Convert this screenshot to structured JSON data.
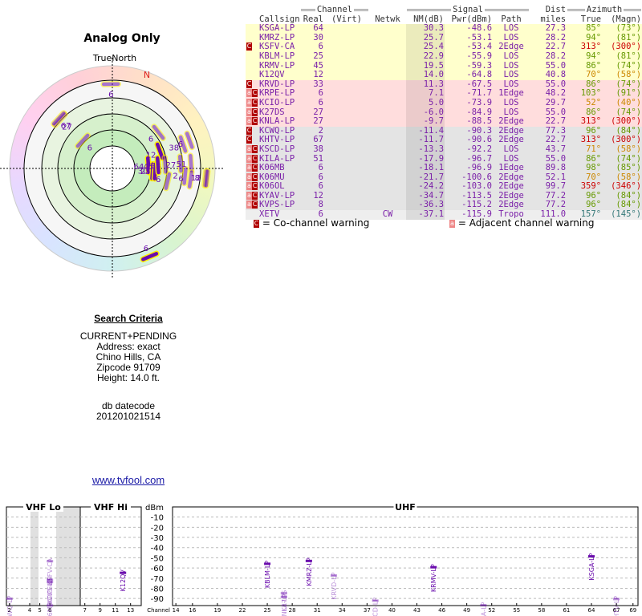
{
  "polar": {
    "title": "Analog Only",
    "north_label": "TrueNorth",
    "n_mark": "N"
  },
  "search": {
    "title": "Search Criteria",
    "lines": [
      "CURRENT+PENDING",
      "Address: exact",
      "Chino Hills, CA",
      "Zipcode 91709",
      "Height: 14.0 ft."
    ],
    "datecode_label": "db datecode",
    "datecode": "201201021514"
  },
  "link": "www.tvfool.com",
  "table": {
    "groups": {
      "channel": "Channel",
      "signal": "Signal",
      "dist": "Dist",
      "azimuth": "Azimuth"
    },
    "columns": {
      "callsign": "Callsign",
      "real": "Real",
      "virt": "(Virt)",
      "netwk": "Netwk",
      "nm": "NM(dB)",
      "pwr": "Pwr(dBm)",
      "path": "Path",
      "dist": "miles",
      "true": "True",
      "magn": "(Magn)"
    },
    "rows": [
      {
        "flags": [],
        "callsign": "KSGA-LP",
        "real": "64",
        "virt": "",
        "netwk": "",
        "nm": "30.3",
        "pwr": "-48.6",
        "path": "LOS",
        "dist": "27.3",
        "true": "85°",
        "magn": "(73°)",
        "bg": "#ffffcc",
        "az_color": "#669900"
      },
      {
        "flags": [],
        "callsign": "KMRZ-LP",
        "real": "30",
        "virt": "",
        "netwk": "",
        "nm": "25.7",
        "pwr": "-53.1",
        "path": "LOS",
        "dist": "28.2",
        "true": "94°",
        "magn": "(81°)",
        "bg": "#ffffcc",
        "az_color": "#669900"
      },
      {
        "flags": [
          "C"
        ],
        "callsign": "KSFV-CA",
        "real": "6",
        "virt": "",
        "netwk": "",
        "nm": "25.4",
        "pwr": "-53.4",
        "path": "2Edge",
        "dist": "22.7",
        "true": "313°",
        "magn": "(300°)",
        "bg": "#ffffcc",
        "az_color": "#cc0000"
      },
      {
        "flags": [],
        "callsign": "KBLM-LP",
        "real": "25",
        "virt": "",
        "netwk": "",
        "nm": "22.9",
        "pwr": "-55.9",
        "path": "LOS",
        "dist": "28.2",
        "true": "94°",
        "magn": "(81°)",
        "bg": "#ffffcc",
        "az_color": "#669900"
      },
      {
        "flags": [],
        "callsign": "KRMV-LP",
        "real": "45",
        "virt": "",
        "netwk": "",
        "nm": "19.5",
        "pwr": "-59.3",
        "path": "LOS",
        "dist": "55.0",
        "true": "86°",
        "magn": "(74°)",
        "bg": "#ffffcc",
        "az_color": "#669900"
      },
      {
        "flags": [],
        "callsign": "K12QV",
        "real": "12",
        "virt": "",
        "netwk": "",
        "nm": "14.0",
        "pwr": "-64.8",
        "path": "LOS",
        "dist": "40.8",
        "true": "70°",
        "magn": "(58°)",
        "bg": "#ffffcc",
        "az_color": "#cc8800"
      },
      {
        "flags": [
          "C"
        ],
        "callsign": "KRVD-LP",
        "real": "33",
        "virt": "",
        "netwk": "",
        "nm": "11.3",
        "pwr": "-67.5",
        "path": "LOS",
        "dist": "55.0",
        "true": "86°",
        "magn": "(74°)",
        "bg": "#ffdddd",
        "az_color": "#669900"
      },
      {
        "flags": [
          "a",
          "C"
        ],
        "callsign": "KRPE-LP",
        "real": "6",
        "virt": "",
        "netwk": "",
        "nm": "7.1",
        "pwr": "-71.7",
        "path": "1Edge",
        "dist": "48.2",
        "true": "103°",
        "magn": "(91°)",
        "bg": "#ffdddd",
        "az_color": "#669900"
      },
      {
        "flags": [
          "a",
          "C"
        ],
        "callsign": "KCIO-LP",
        "real": "6",
        "virt": "",
        "netwk": "",
        "nm": "5.0",
        "pwr": "-73.9",
        "path": "LOS",
        "dist": "29.7",
        "true": "52°",
        "magn": "(40°)",
        "bg": "#ffdddd",
        "az_color": "#cc8800"
      },
      {
        "flags": [
          "a",
          "C"
        ],
        "callsign": "K27DS",
        "real": "27",
        "virt": "",
        "netwk": "",
        "nm": "-6.0",
        "pwr": "-84.9",
        "path": "LOS",
        "dist": "55.0",
        "true": "86°",
        "magn": "(74°)",
        "bg": "#ffdddd",
        "az_color": "#669900"
      },
      {
        "flags": [
          "a",
          "C"
        ],
        "callsign": "KNLA-LP",
        "real": "27",
        "virt": "",
        "netwk": "",
        "nm": "-9.7",
        "pwr": "-88.5",
        "path": "2Edge",
        "dist": "22.7",
        "true": "313°",
        "magn": "(300°)",
        "bg": "#ffdddd",
        "az_color": "#cc0000"
      },
      {
        "flags": [
          "C"
        ],
        "callsign": "KCWQ-LP",
        "real": "2",
        "virt": "",
        "netwk": "",
        "nm": "-11.4",
        "pwr": "-90.3",
        "path": "2Edge",
        "dist": "77.3",
        "true": "96°",
        "magn": "(84°)",
        "bg": "#e4e4e4",
        "az_color": "#669900"
      },
      {
        "flags": [
          "C"
        ],
        "callsign": "KHTV-LP",
        "real": "67",
        "virt": "",
        "netwk": "",
        "nm": "-11.7",
        "pwr": "-90.6",
        "path": "2Edge",
        "dist": "22.7",
        "true": "313°",
        "magn": "(300°)",
        "bg": "#e4e4e4",
        "az_color": "#cc0000"
      },
      {
        "flags": [
          "a",
          "C"
        ],
        "callsign": "KSCD-LP",
        "real": "38",
        "virt": "",
        "netwk": "",
        "nm": "-13.3",
        "pwr": "-92.2",
        "path": "LOS",
        "dist": "43.7",
        "true": "71°",
        "magn": "(58°)",
        "bg": "#e4e4e4",
        "az_color": "#cc8800"
      },
      {
        "flags": [
          "a",
          "C"
        ],
        "callsign": "KILA-LP",
        "real": "51",
        "virt": "",
        "netwk": "",
        "nm": "-17.9",
        "pwr": "-96.7",
        "path": "LOS",
        "dist": "55.0",
        "true": "86°",
        "magn": "(74°)",
        "bg": "#e4e4e4",
        "az_color": "#669900"
      },
      {
        "flags": [
          "a",
          "C"
        ],
        "callsign": "K06MB",
        "real": "6",
        "virt": "",
        "netwk": "",
        "nm": "-18.1",
        "pwr": "-96.9",
        "path": "1Edge",
        "dist": "89.8",
        "true": "98°",
        "magn": "(85°)",
        "bg": "#e4e4e4",
        "az_color": "#669900"
      },
      {
        "flags": [
          "a",
          "C"
        ],
        "callsign": "K06MU",
        "real": "6",
        "virt": "",
        "netwk": "",
        "nm": "-21.7",
        "pwr": "-100.6",
        "path": "2Edge",
        "dist": "52.1",
        "true": "70°",
        "magn": "(58°)",
        "bg": "#e4e4e4",
        "az_color": "#cc8800"
      },
      {
        "flags": [
          "a",
          "C"
        ],
        "callsign": "K06OL",
        "real": "6",
        "virt": "",
        "netwk": "",
        "nm": "-24.2",
        "pwr": "-103.0",
        "path": "2Edge",
        "dist": "99.7",
        "true": "359°",
        "magn": "(346°)",
        "bg": "#e4e4e4",
        "az_color": "#cc0000"
      },
      {
        "flags": [
          "a",
          "C"
        ],
        "callsign": "KYAV-LP",
        "real": "12",
        "virt": "",
        "netwk": "",
        "nm": "-34.7",
        "pwr": "-113.5",
        "path": "2Edge",
        "dist": "77.2",
        "true": "96°",
        "magn": "(84°)",
        "bg": "#e4e4e4",
        "az_color": "#669900"
      },
      {
        "flags": [
          "a",
          "C"
        ],
        "callsign": "KVPS-LP",
        "real": "8",
        "virt": "",
        "netwk": "",
        "nm": "-36.3",
        "pwr": "-115.2",
        "path": "2Edge",
        "dist": "77.2",
        "true": "96°",
        "magn": "(84°)",
        "bg": "#e4e4e4",
        "az_color": "#669900"
      },
      {
        "flags": [],
        "callsign": "XETV",
        "real": "6",
        "virt": "",
        "netwk": "CW",
        "nm": "-37.1",
        "pwr": "-115.9",
        "path": "Tropo",
        "dist": "111.0",
        "true": "157°",
        "magn": "(145°)",
        "bg": "#eeeeee",
        "az_color": "#337777"
      }
    ]
  },
  "legend": [
    {
      "icon": "C",
      "text": "= Co-channel warning"
    },
    {
      "icon": "a",
      "text": "= Adjacent channel warning"
    }
  ],
  "spectrum": {
    "y_label": "dBm",
    "x_label": "Channel",
    "ylim": [
      -97,
      0
    ],
    "yticks": [
      -10,
      -20,
      -30,
      -40,
      -50,
      -60,
      -70,
      -80,
      -90
    ],
    "sections": [
      {
        "label": "VHF Lo",
        "xlim": [
          1.7,
          9
        ],
        "ticks": [
          2,
          4,
          5,
          6
        ]
      },
      {
        "label": "VHF Hi",
        "xlim": [
          6.4,
          14.4
        ],
        "ticks": [
          7,
          9,
          11,
          13
        ]
      },
      {
        "label": "UHF",
        "xlim": [
          13.6,
          69.6
        ],
        "ticks": [
          14,
          16,
          19,
          22,
          25,
          28,
          31,
          34,
          37,
          40,
          43,
          46,
          49,
          52,
          55,
          58,
          61,
          64,
          67,
          69
        ]
      }
    ]
  }
}
